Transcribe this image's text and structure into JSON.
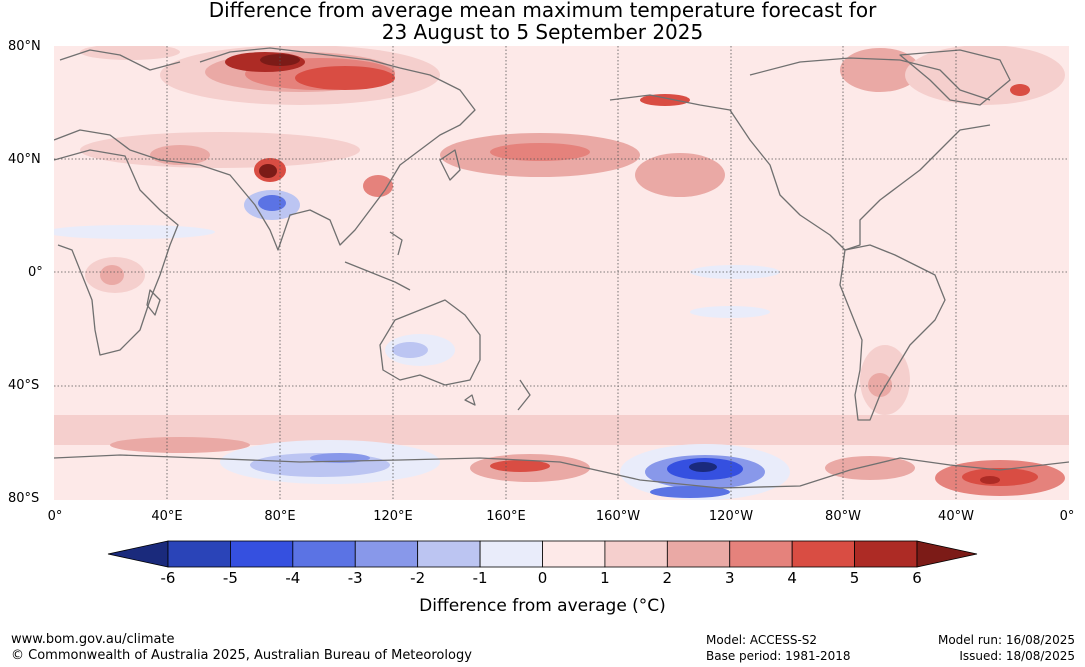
{
  "title": {
    "line1": "Difference from average mean maximum temperature forecast for",
    "line2": "23 August to 5 September 2025"
  },
  "map": {
    "projection": "equirectangular",
    "lon_center": 180,
    "lat_range": [
      -80,
      80
    ],
    "lat_labels": [
      "80°N",
      "40°N",
      "0°",
      "40°S",
      "80°S"
    ],
    "lon_labels": [
      "0°",
      "40°E",
      "80°E",
      "120°E",
      "160°E",
      "160°W",
      "120°W",
      "80°W",
      "40°W",
      "0°"
    ],
    "gridlines": "dotted",
    "background_anomaly": "0 to 1"
  },
  "colorbar": {
    "ticks": [
      "-6",
      "-5",
      "-4",
      "-3",
      "-2",
      "-1",
      "0",
      "1",
      "2",
      "3",
      "4",
      "5",
      "6"
    ],
    "colors": [
      "#1a2a7c",
      "#2a44b8",
      "#3550e0",
      "#5b73e4",
      "#8898ea",
      "#bcc5f2",
      "#e9ecfa",
      "#fde9e8",
      "#f5cfcd",
      "#eaa9a5",
      "#e5827c",
      "#d94d43",
      "#ad2b25",
      "#7c1b17"
    ],
    "extend": "both",
    "title": "Difference from average (°C)"
  },
  "footer": {
    "website": "www.bom.gov.au/climate",
    "copyright": "© Commonwealth of Australia 2025, Australian Bureau of Meteorology",
    "model": "Model: ACCESS-S2",
    "base_period": "Base period: 1981-2018",
    "model_run": "Model run: 16/08/2025",
    "issued": "Issued: 18/08/2025"
  }
}
